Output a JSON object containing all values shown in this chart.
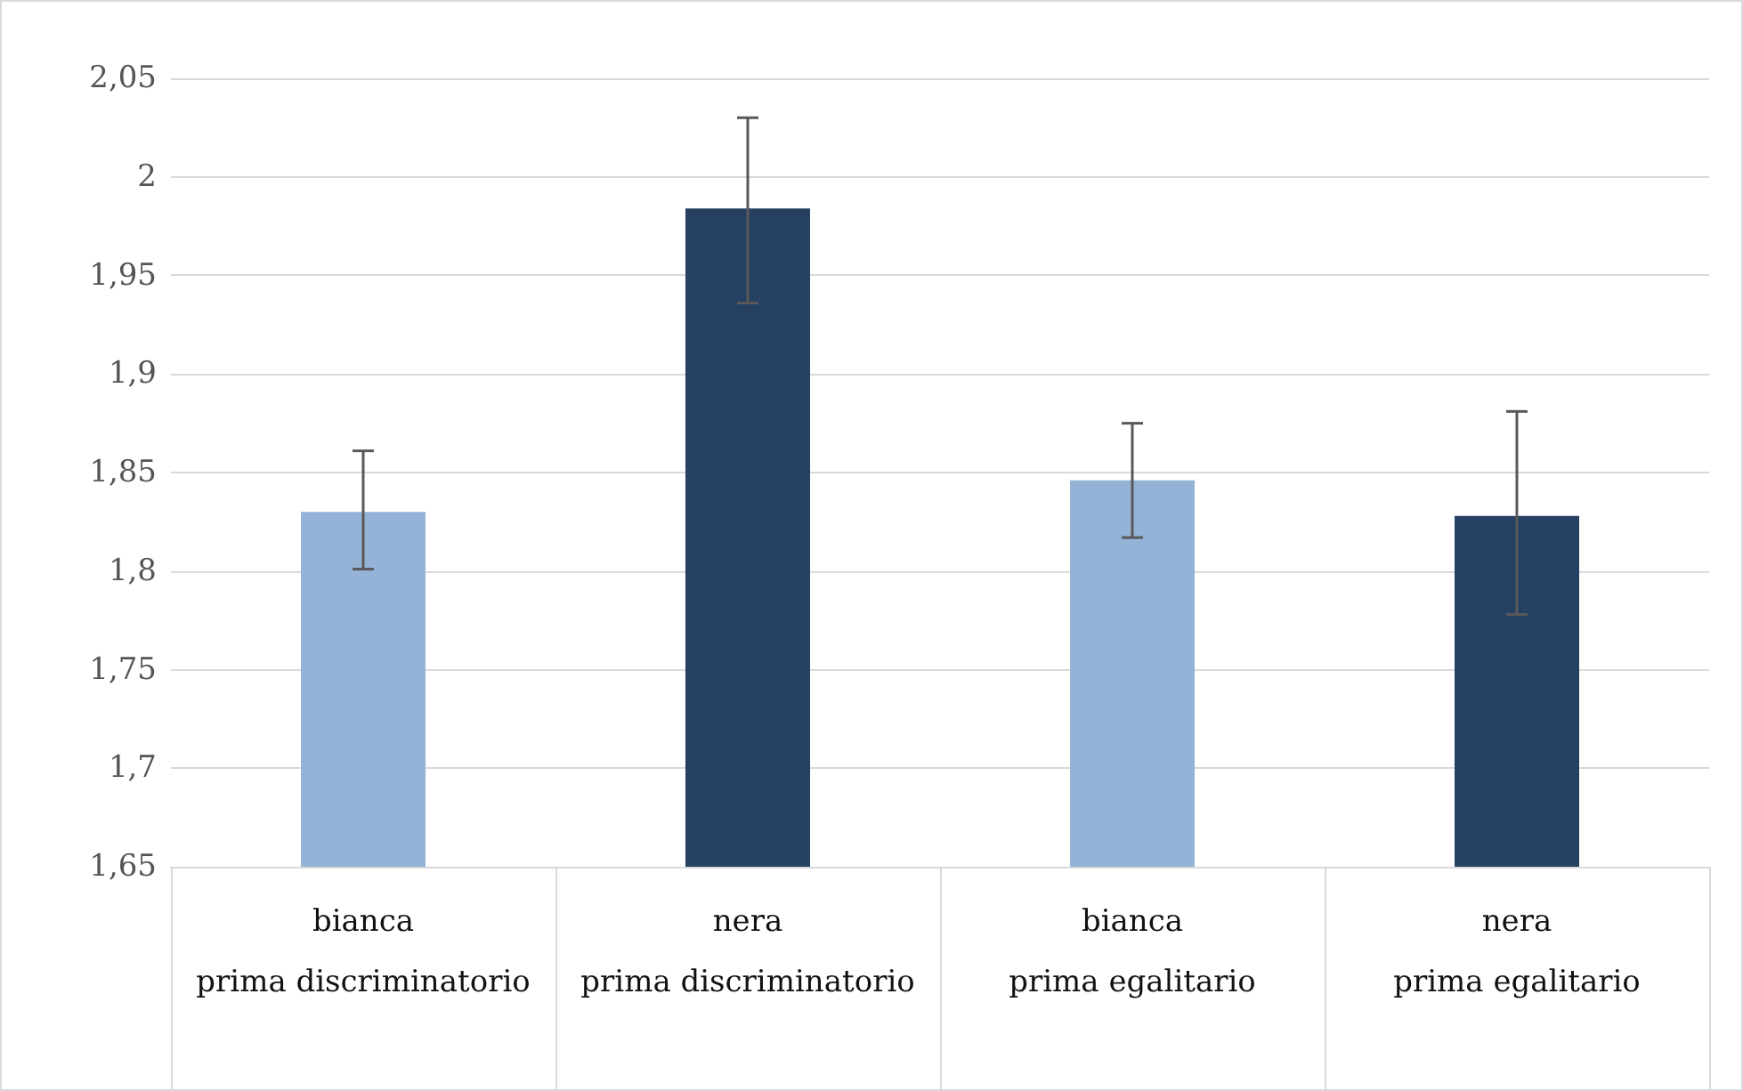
{
  "chart_data": {
    "type": "bar",
    "categories": [
      "bianca\nprima discriminatorio",
      "nera\nprima discriminatorio",
      "bianca\nprima egalitario",
      "nera\nprima egalitario"
    ],
    "values": [
      1.83,
      1.984,
      1.846,
      1.828
    ],
    "colors": [
      "#95b3d7",
      "#254061",
      "#95b3d7",
      "#254061"
    ],
    "errors": [
      [
        1.801,
        1.861
      ],
      [
        1.936,
        2.03
      ],
      [
        1.817,
        1.875
      ],
      [
        1.778,
        1.881
      ]
    ],
    "ylim": [
      1.65,
      2.05
    ],
    "yticks": [
      {
        "value": 1.65,
        "label": "1,65"
      },
      {
        "value": 1.7,
        "label": "1,7"
      },
      {
        "value": 1.75,
        "label": "1,75"
      },
      {
        "value": 1.8,
        "label": "1,8"
      },
      {
        "value": 1.85,
        "label": "1,85"
      },
      {
        "value": 1.9,
        "label": "1,9"
      },
      {
        "value": 1.95,
        "label": "1,95"
      },
      {
        "value": 2,
        "label": "2"
      },
      {
        "value": 2.05,
        "label": "2,05"
      }
    ],
    "grid": "y"
  }
}
